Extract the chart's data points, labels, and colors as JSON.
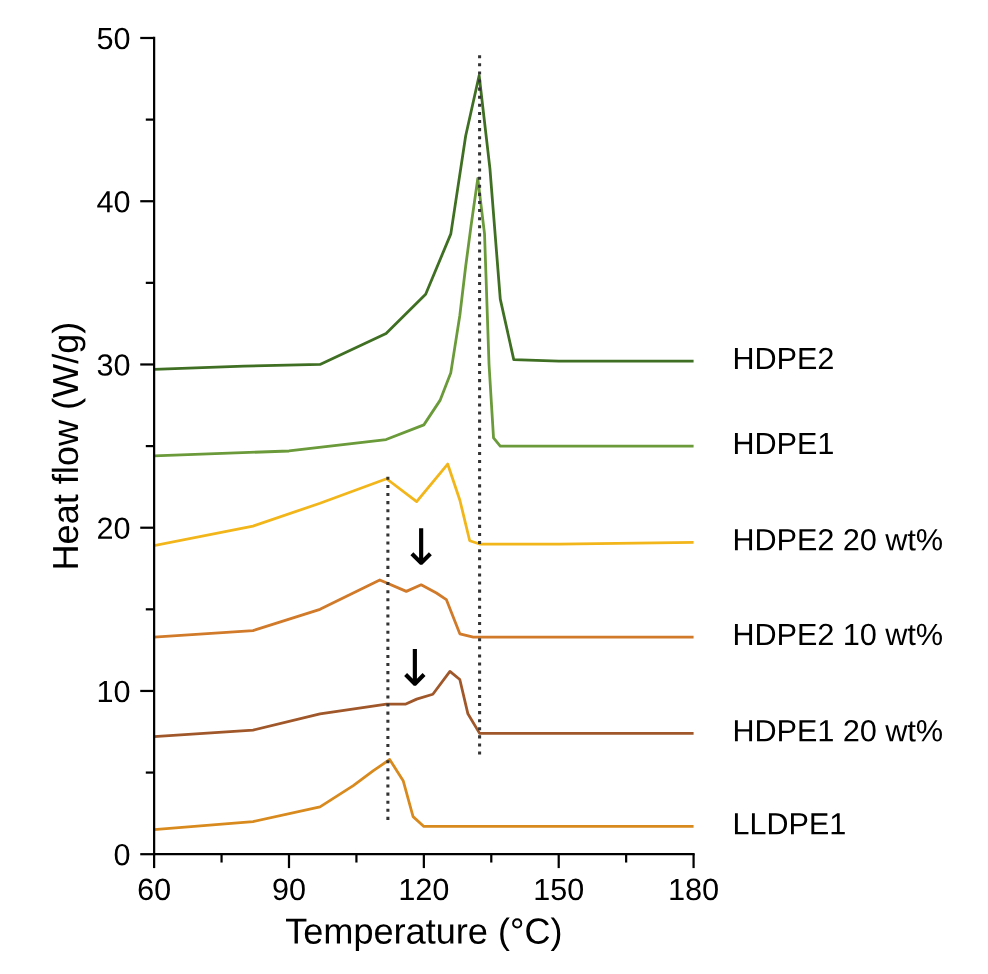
{
  "chart_data": {
    "type": "line",
    "xlabel": "Temperature (°C)",
    "ylabel": "Heat flow (W/g)",
    "xlim": [
      60,
      180
    ],
    "ylim": [
      0,
      50
    ],
    "xticks": [
      60,
      {
        "value": 75,
        "label": null
      },
      90,
      {
        "value": 105,
        "label": null
      },
      120,
      {
        "value": 135,
        "label": null
      },
      150,
      {
        "value": 165,
        "label": null
      },
      180
    ],
    "yticks": [
      0,
      {
        "value": 5,
        "label": null
      },
      10,
      {
        "value": 15,
        "label": null
      },
      20,
      {
        "value": 25,
        "label": null
      },
      30,
      {
        "value": 35,
        "label": null
      },
      40,
      {
        "value": 45,
        "label": null
      },
      50
    ],
    "grid": false,
    "legend": false,
    "marker": "none",
    "line_style": "solid",
    "series": [
      {
        "name": "HDPE2",
        "color": "#3f6f22",
        "x": [
          60,
          80,
          96.9,
          111.6,
          120.4,
          126,
          129.3,
          132.3,
          134.7,
          137,
          140,
          150,
          180
        ],
        "values": [
          29.7,
          29.9,
          30.0,
          31.9,
          34.3,
          38,
          44,
          47.7,
          42,
          34,
          30.3,
          30.2,
          30.2
        ]
      },
      {
        "name": "HDPE1",
        "color": "#6a9a3a",
        "x": [
          60,
          90,
          111.6,
          120,
          123.6,
          126,
          128,
          129.3,
          130.5,
          132,
          133.5,
          134.5,
          135.5,
          137,
          150,
          180
        ],
        "values": [
          24.4,
          24.7,
          25.4,
          26.3,
          27.8,
          29.5,
          33,
          36,
          38.5,
          41.4,
          38,
          30,
          25.5,
          25.0,
          25.0,
          25.0
        ]
      },
      {
        "name": "HDPE2 20 wt%",
        "color": "#f2b51a",
        "x": [
          60,
          82,
          96.9,
          111.7,
          118.4,
          125.3,
          128,
          130.2,
          132.4,
          150,
          180
        ],
        "values": [
          18.9,
          20.1,
          21.5,
          23.0,
          21.6,
          23.9,
          21.7,
          19.2,
          19.0,
          19.0,
          19.1
        ]
      },
      {
        "name": "HDPE2 10 wt%",
        "color": "#d07a2a",
        "x": [
          60,
          82,
          96.9,
          110.2,
          116.1,
          119.4,
          122.8,
          125,
          128,
          131,
          150,
          180
        ],
        "values": [
          13.3,
          13.7,
          15.0,
          16.8,
          16.1,
          16.5,
          16.0,
          15.6,
          13.5,
          13.3,
          13.3,
          13.3
        ]
      },
      {
        "name": "HDPE1 20 wt%",
        "color": "#a0572a",
        "x": [
          60,
          82,
          96.9,
          111.7,
          116,
          118.4,
          122,
          125.8,
          128,
          129.8,
          132.4,
          150,
          180
        ],
        "values": [
          7.2,
          7.6,
          8.6,
          9.2,
          9.2,
          9.5,
          9.8,
          11.2,
          10.7,
          8.6,
          7.4,
          7.4,
          7.4
        ]
      },
      {
        "name": "LLDPE1",
        "color": "#d98a1e",
        "x": [
          60,
          82,
          96.9,
          104.3,
          108.7,
          112.4,
          115.4,
          117.6,
          120,
          150,
          180
        ],
        "values": [
          1.5,
          2.0,
          2.9,
          4.2,
          5.1,
          5.8,
          4.5,
          2.3,
          1.7,
          1.7,
          1.7
        ]
      },
      {
        "color": "#333333",
        "line_style": "dotted",
        "x": [
          112,
          112
        ],
        "values": [
          2.1,
          23.4
        ]
      },
      {
        "color": "#333333",
        "line_style": "dotted",
        "x": [
          132.4,
          132.4
        ],
        "values": [
          6.1,
          49
        ]
      }
    ],
    "annotations": [
      {
        "text": "↓",
        "x": 119.4,
        "y": 17.1
      },
      {
        "text": "↓",
        "x": 118,
        "y": 9.7
      }
    ]
  }
}
